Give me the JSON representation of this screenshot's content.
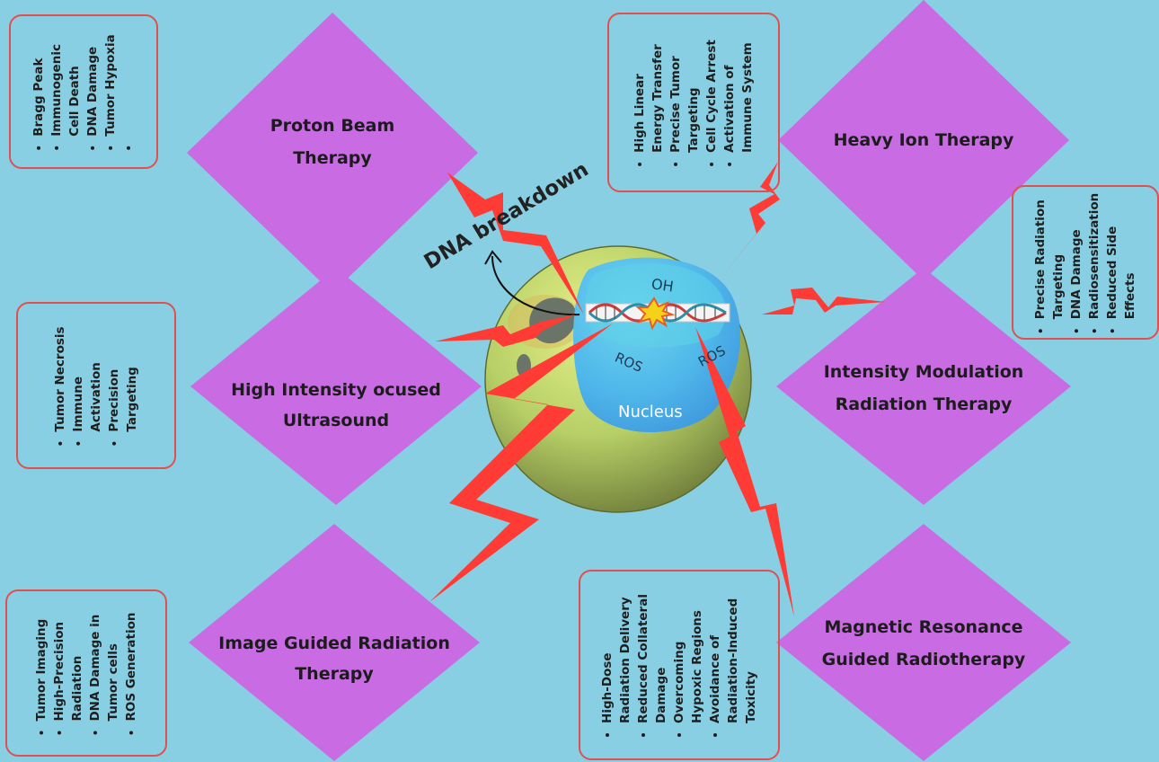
{
  "therapies": {
    "proton": [
      "Proton Beam",
      "Therapy"
    ],
    "heavy_ion": [
      "Heavy Ion Therapy"
    ],
    "hifu": [
      "High Intensity ocused",
      "Ultrasound"
    ],
    "imrt": [
      "Intensity Modulation",
      "Radiation Therapy"
    ],
    "igrt": [
      "Image Guided Radiation",
      "Therapy"
    ],
    "mrgrt": [
      "Magnetic Resonance",
      "Guided Radiotherapy"
    ]
  },
  "boxes": {
    "proton": [
      "Bragg Peak",
      "Immunogenic",
      "Cell Death",
      "DNA Damage",
      "Tumor Hypoxia",
      ""
    ],
    "heavy_ion": [
      "High Linear",
      "Energy Transfer",
      "Precise Tumor",
      "Targeting",
      "Cell Cycle Arrest",
      "Activation of",
      "Immune System"
    ],
    "imrt": [
      "Precise Radiation",
      "Targeting",
      "DNA Damage",
      "Radiosensitization",
      "Reduced Side",
      "Effects"
    ],
    "hifu": [
      "Tumor Necrosis",
      "Immune",
      "Activation",
      "Precision",
      "Targeting"
    ],
    "igrt": [
      "Tumor Imaging",
      "High-Precision",
      "Radiation",
      "DNA Damage in",
      "Tumor cells",
      "ROS Generation"
    ],
    "mrgrt": [
      "High-Dose",
      "Radiation Delivery",
      "Reduced Collateral",
      "Damage",
      "Overcoming",
      "Hypoxic Regions",
      "Avoidance of",
      "Radiation-Induced",
      "Toxicity"
    ]
  },
  "bullets": {
    "proton": [
      true,
      true,
      false,
      true,
      true,
      true
    ],
    "heavy_ion": [
      true,
      false,
      true,
      false,
      true,
      true,
      false
    ],
    "imrt": [
      true,
      false,
      true,
      true,
      true,
      false
    ],
    "hifu": [
      true,
      true,
      false,
      true,
      false
    ],
    "igrt": [
      true,
      true,
      false,
      true,
      false,
      true
    ],
    "mrgrt": [
      true,
      false,
      true,
      false,
      true,
      false,
      true,
      false,
      false
    ]
  },
  "cell": {
    "dna_breakdown": "DNA breakdown",
    "oh": "OH",
    "ros_left": "ROS",
    "ros_right": "ROS",
    "nucleus": "Nucleus"
  },
  "colors": {
    "background": "#89cfe3",
    "diamond": "#c96ce3",
    "box_border": "#e05050",
    "bolt": "#ff3b36",
    "cell": "#b9d46b",
    "nucleus": "#4fb3ea"
  }
}
